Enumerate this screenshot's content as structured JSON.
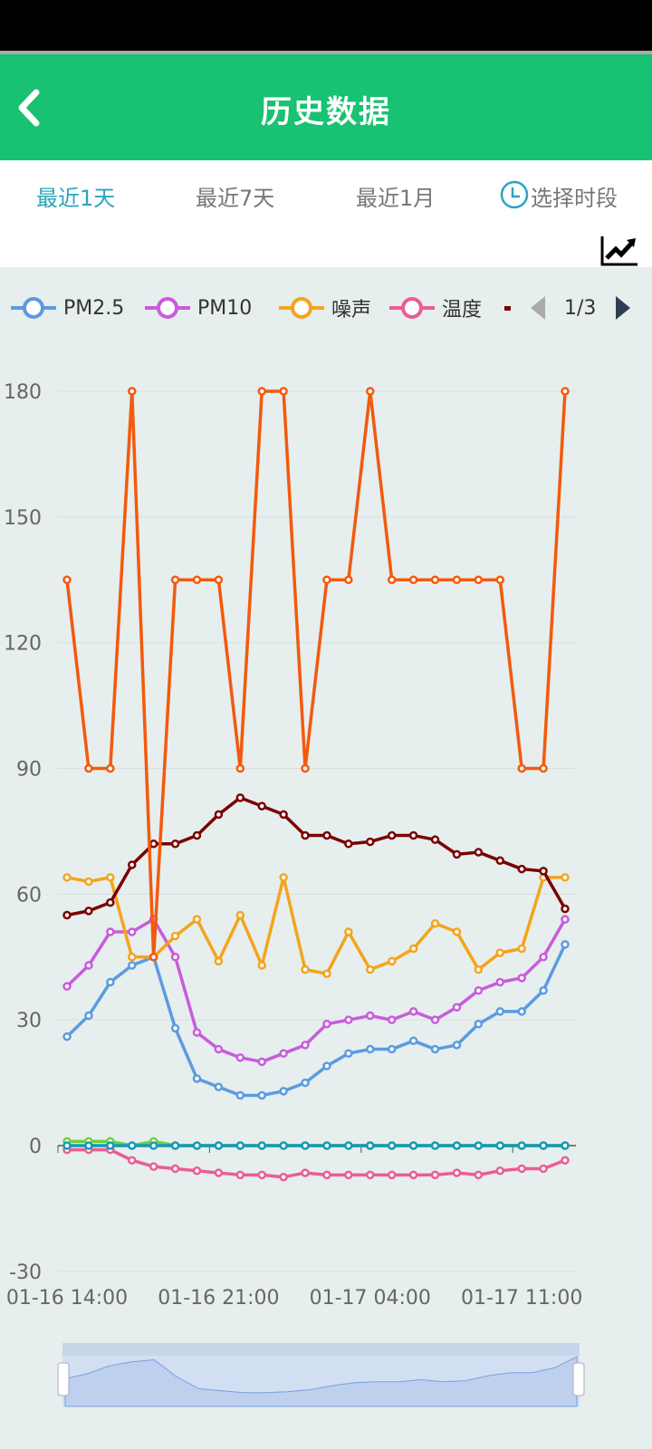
{
  "header": {
    "title": "历史数据"
  },
  "tabs": [
    {
      "label": "最近1天",
      "active": true
    },
    {
      "label": "最近7天"
    },
    {
      "label": "最近1月"
    },
    {
      "label": "选择时段"
    }
  ],
  "legend": {
    "page": "1/3"
  },
  "chart_data": {
    "type": "line",
    "ylim": [
      -30,
      180
    ],
    "yticks": [
      "180",
      "150",
      "120",
      "90",
      "60",
      "30",
      "0",
      "-30"
    ],
    "xticks": [
      "01-16 14:00",
      "01-16 21:00",
      "01-17 04:00",
      "01-17 11:00"
    ],
    "series": [
      {
        "name": "PM2.5",
        "color": "#5b9be0",
        "values": [
          26,
          31,
          39,
          43,
          45,
          28,
          16,
          14,
          12,
          12,
          13,
          15,
          19,
          22,
          23,
          23,
          25,
          23,
          24,
          29,
          32,
          32,
          37,
          48
        ]
      },
      {
        "name": "PM10",
        "color": "#c75ddb",
        "values": [
          38,
          43,
          51,
          51,
          54,
          45,
          27,
          23,
          21,
          20,
          22,
          24,
          29,
          30,
          31,
          30,
          32,
          30,
          33,
          37,
          39,
          40,
          45,
          54
        ]
      },
      {
        "name": "噪声",
        "color": "#f4a41c",
        "values": [
          64,
          63,
          64,
          45,
          45,
          50,
          54,
          44,
          55,
          43,
          64,
          42,
          41,
          51,
          42,
          44,
          47,
          53,
          51,
          42,
          46,
          47,
          64,
          64
        ]
      },
      {
        "name": "温度",
        "color": "#ea5d92",
        "values": [
          -1,
          -1,
          -1,
          -3.5,
          -5,
          -5.5,
          -6,
          -6.5,
          -7,
          -7,
          -7.5,
          -6.5,
          -7,
          -7,
          -7,
          -7,
          -7,
          -7,
          -6.5,
          -7,
          -6,
          -5.5,
          -5.5,
          -3.5
        ]
      },
      {
        "name": "",
        "color": "#7a0000",
        "values": [
          55,
          56,
          58,
          67,
          72,
          72,
          74,
          79,
          83,
          81,
          79,
          74,
          74,
          72,
          72.5,
          74,
          74,
          73,
          69.5,
          70,
          68,
          66,
          65.5,
          56.5
        ]
      },
      {
        "name": "",
        "color": "#f35a0c",
        "values": [
          135,
          90,
          90,
          180,
          45,
          135,
          135,
          135,
          90,
          180,
          180,
          90,
          135,
          135,
          180,
          135,
          135,
          135,
          135,
          135,
          135,
          90,
          90,
          180
        ]
      },
      {
        "name": "",
        "color": "#6bd23a",
        "values": [
          1,
          1,
          1,
          0,
          1,
          0,
          0,
          0,
          0,
          0,
          0,
          0,
          0,
          0,
          0,
          0,
          0,
          0,
          0,
          0,
          0,
          0,
          0,
          0
        ]
      },
      {
        "name": "",
        "color": "#1599b5",
        "values": [
          0,
          0,
          0,
          0,
          0,
          0,
          0,
          0,
          0,
          0,
          0,
          0,
          0,
          0,
          0,
          0,
          0,
          0,
          0,
          0,
          0,
          0,
          0,
          0
        ]
      }
    ]
  }
}
